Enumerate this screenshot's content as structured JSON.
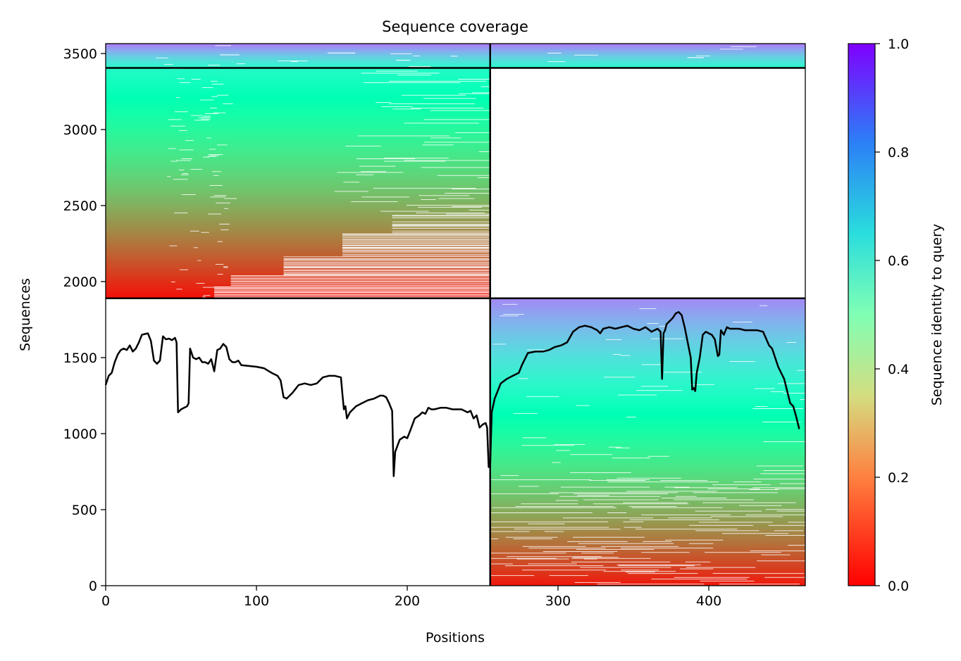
{
  "chart_data": {
    "type": "heatmap",
    "title": "Sequence coverage",
    "xlabel": "Positions",
    "ylabel": "Sequences",
    "xlim": [
      0,
      464
    ],
    "ylim": [
      0,
      3565
    ],
    "xticks": [
      0,
      100,
      200,
      300,
      400
    ],
    "yticks": [
      0,
      500,
      1000,
      1500,
      2000,
      2500,
      3000,
      3500
    ],
    "chain_boundary_x": 255,
    "block_boundaries_y": [
      1890,
      3405
    ],
    "grid": false,
    "colorbar": {
      "label": "Sequence identity to query",
      "range": [
        0.0,
        1.0
      ],
      "ticks": [
        "0.0",
        "0.2",
        "0.4",
        "0.6",
        "0.8",
        "1.0"
      ],
      "colormap": "rainbow_r",
      "stops": [
        "#ff0000",
        "#ff8040",
        "#d4dd80",
        "#80ffb4",
        "#2adddd",
        "#2c7ef7",
        "#8000ff"
      ]
    },
    "coverage_line": {
      "color": "#000000",
      "x": [
        0,
        2,
        4,
        6,
        8,
        10,
        12,
        14,
        16,
        18,
        20,
        22,
        24,
        26,
        28,
        30,
        32,
        34,
        36,
        38,
        40,
        42,
        44,
        46,
        47,
        48,
        50,
        52,
        54,
        55,
        56,
        58,
        60,
        62,
        64,
        66,
        68,
        70,
        72,
        74,
        76,
        78,
        80,
        82,
        84,
        86,
        88,
        90,
        95,
        100,
        105,
        110,
        114,
        116,
        118,
        120,
        124,
        128,
        132,
        136,
        140,
        144,
        148,
        152,
        156,
        157,
        158,
        159,
        160,
        162,
        166,
        170,
        174,
        178,
        182,
        184,
        186,
        188,
        190,
        191,
        192,
        195,
        198,
        200,
        202,
        205,
        208,
        210,
        212,
        214,
        216,
        218,
        222,
        226,
        230,
        236,
        240,
        242,
        244,
        246,
        248,
        250,
        252,
        253,
        254,
        255,
        256,
        258,
        262,
        266,
        270,
        274,
        276,
        280,
        285,
        290,
        294,
        298,
        302,
        306,
        310,
        314,
        318,
        322,
        326,
        328,
        330,
        334,
        338,
        342,
        346,
        350,
        354,
        358,
        362,
        366,
        368,
        369,
        370,
        371,
        372,
        374,
        376,
        378,
        380,
        382,
        384,
        386,
        388,
        389,
        390,
        391,
        392,
        394,
        396,
        398,
        400,
        402,
        404,
        406,
        407,
        408,
        410,
        412,
        414,
        416,
        420,
        424,
        428,
        432,
        436,
        440,
        442,
        444,
        446,
        450,
        454,
        456,
        458,
        460,
        462,
        464
      ],
      "y": [
        1320,
        1380,
        1400,
        1470,
        1520,
        1550,
        1560,
        1550,
        1580,
        1540,
        1560,
        1600,
        1650,
        1655,
        1660,
        1610,
        1480,
        1460,
        1480,
        1640,
        1620,
        1625,
        1615,
        1630,
        1600,
        1140,
        1160,
        1170,
        1180,
        1200,
        1560,
        1500,
        1490,
        1500,
        1470,
        1470,
        1460,
        1490,
        1410,
        1550,
        1560,
        1590,
        1570,
        1490,
        1470,
        1470,
        1480,
        1450,
        1445,
        1440,
        1430,
        1400,
        1380,
        1350,
        1240,
        1230,
        1270,
        1320,
        1330,
        1320,
        1330,
        1370,
        1380,
        1380,
        1370,
        1260,
        1160,
        1180,
        1100,
        1140,
        1180,
        1200,
        1220,
        1230,
        1250,
        1250,
        1240,
        1200,
        1150,
        720,
        880,
        960,
        980,
        970,
        1020,
        1100,
        1120,
        1140,
        1130,
        1170,
        1160,
        1160,
        1170,
        1170,
        1160,
        1160,
        1140,
        1150,
        1100,
        1120,
        1040,
        1060,
        1070,
        1040,
        780,
        780,
        1140,
        1230,
        1330,
        1360,
        1380,
        1400,
        1450,
        1530,
        1540,
        1540,
        1550,
        1570,
        1580,
        1600,
        1670,
        1700,
        1710,
        1700,
        1680,
        1660,
        1690,
        1700,
        1690,
        1700,
        1710,
        1690,
        1680,
        1700,
        1670,
        1690,
        1670,
        1360,
        1660,
        1680,
        1720,
        1740,
        1760,
        1790,
        1800,
        1780,
        1700,
        1600,
        1500,
        1290,
        1300,
        1280,
        1400,
        1500,
        1650,
        1670,
        1660,
        1650,
        1620,
        1510,
        1520,
        1680,
        1650,
        1700,
        1690,
        1690,
        1690,
        1680,
        1680,
        1680,
        1670,
        1580,
        1560,
        1500,
        1440,
        1360,
        1200,
        1180,
        1110,
        1030
      ]
    }
  }
}
